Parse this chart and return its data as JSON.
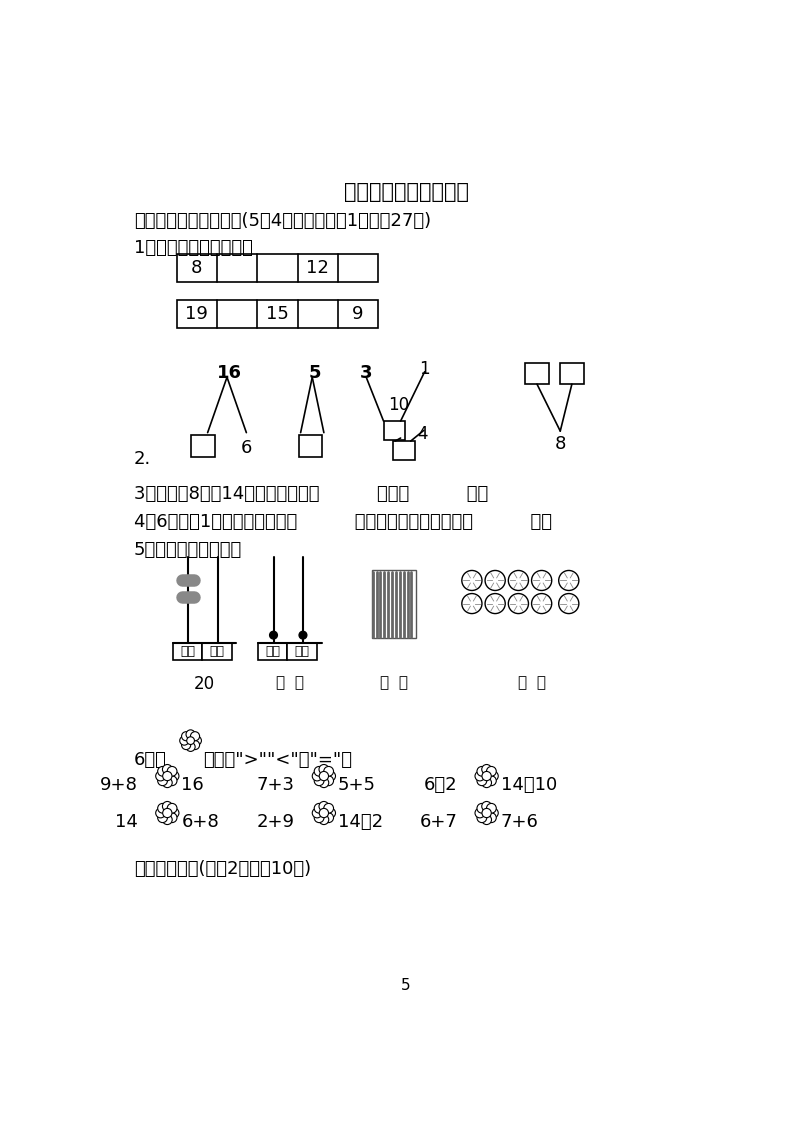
{
  "title": "上海市名校期末测试卷",
  "bg_color": "#ffffff",
  "section1": "一、填一填，画一画。(5题4分，其余每空1分，共27分)",
  "q1_label": "1．按数的顺序填一填。",
  "q1_row1": [
    "8",
    "",
    "",
    "12",
    ""
  ],
  "q1_row2": [
    "19",
    "",
    "15",
    "",
    "9"
  ],
  "q3_label": "3．写出比8大比14小的两个数：（          ）、（          ）。",
  "q4_label": "4．6个一和1个十组成的数是（          ），它后面的一个数是（          ）。",
  "q5_label": "5．画一画，写一写。",
  "q6_row1_left": [
    "9+8",
    "7+3",
    "6－2"
  ],
  "q6_row1_right": [
    "16",
    "5+5",
    "14－10"
  ],
  "q6_row2_left": [
    "14",
    "2+9",
    "6+7"
  ],
  "q6_row2_right": [
    "6+8",
    "14－2",
    "7+6"
  ],
  "section3": "三、我会选。(每题2分，共10分)",
  "page_num": "5"
}
